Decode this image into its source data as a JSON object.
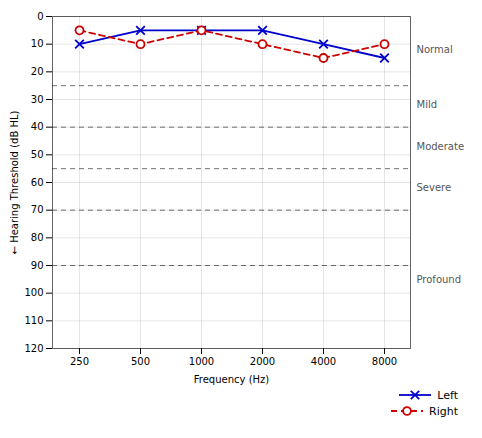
{
  "chart_data": {
    "type": "line",
    "xlabel": "Frequency (Hz)",
    "ylabel": "Hearing Threshold (dB HL)",
    "categories": [
      "250",
      "500",
      "1000",
      "2000",
      "4000",
      "8000"
    ],
    "series": [
      {
        "name": "Left",
        "color": "#0000CC",
        "values": [
          10,
          5,
          5,
          5,
          10,
          15
        ],
        "marker": "x",
        "line_style": "solid"
      },
      {
        "name": "Right",
        "color": "#CC0000",
        "values": [
          5,
          10,
          5,
          10,
          15,
          10
        ],
        "marker": "o",
        "line_style": "dashed"
      }
    ],
    "ylim": [
      120,
      0
    ],
    "yticks": [
      0,
      10,
      20,
      30,
      40,
      50,
      60,
      70,
      80,
      90,
      100,
      110,
      120
    ],
    "grid": true,
    "legend": "lower right",
    "reference_lines": [
      25,
      40,
      55,
      70,
      90
    ],
    "annotations": [
      {
        "text": "Normal",
        "y": 12
      },
      {
        "text": "Mild",
        "y": 32
      },
      {
        "text": "Moderate",
        "y": 47
      },
      {
        "text": "Severe",
        "y": 62
      },
      {
        "text": "Profound",
        "y": 95
      }
    ]
  }
}
